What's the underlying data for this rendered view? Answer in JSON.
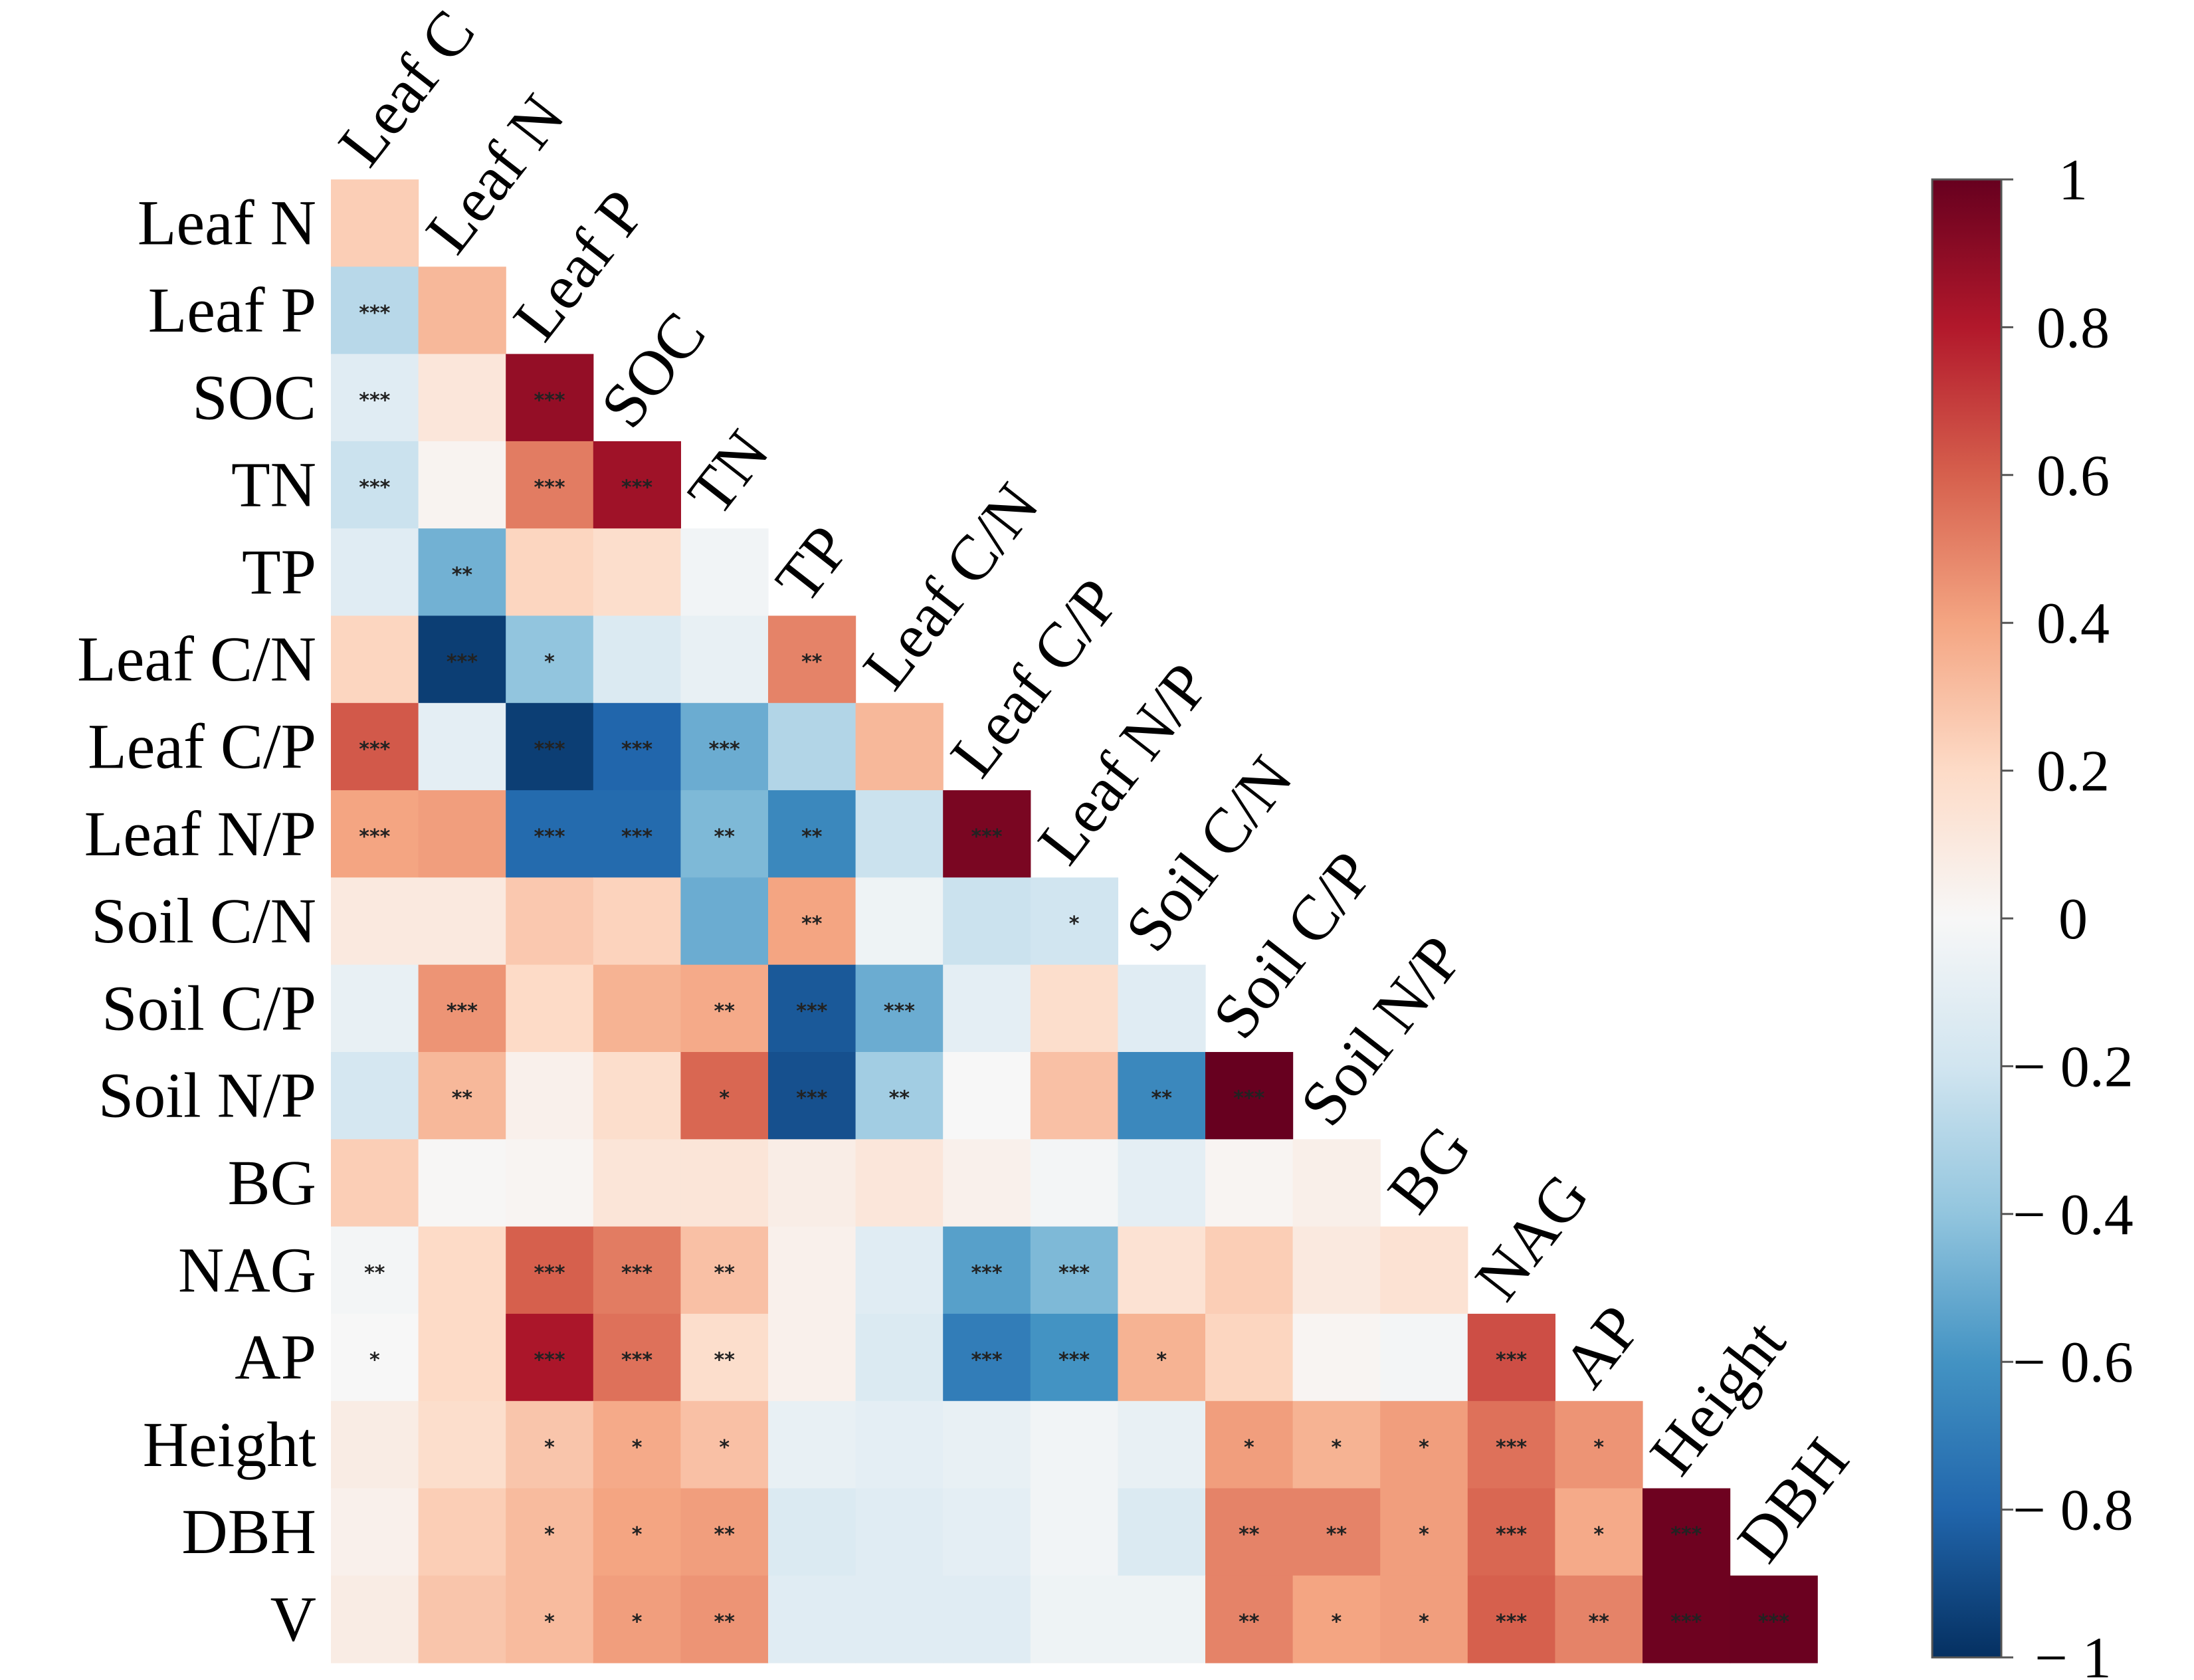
{
  "chart_data": {
    "type": "heatmap",
    "title": "",
    "variables": [
      "Leaf C",
      "Leaf N",
      "Leaf P",
      "SOC",
      "TN",
      "TP",
      "Leaf C/N",
      "Leaf C/P",
      "Leaf N/P",
      "Soil C/N",
      "Soil C/P",
      "Soil N/P",
      "BG",
      "NAG",
      "AP",
      "Height",
      "DBH",
      "V"
    ],
    "row_labels": [
      "Leaf N",
      "Leaf P",
      "SOC",
      "TN",
      "TP",
      "Leaf C/N",
      "Leaf C/P",
      "Leaf N/P",
      "Soil C/N",
      "Soil C/P",
      "Soil N/P",
      "BG",
      "NAG",
      "AP",
      "Height",
      "DBH",
      "V"
    ],
    "col_labels": [
      "Leaf C",
      "Leaf N",
      "Leaf P",
      "SOC",
      "TN",
      "TP",
      "Leaf C/N",
      "Leaf C/P",
      "Leaf N/P",
      "Soil C/N",
      "Soil C/P",
      "Soil N/P",
      "BG",
      "NAG",
      "AP",
      "Height",
      "DBH"
    ],
    "values": [
      [
        0.25
      ],
      [
        -0.28,
        0.33
      ],
      [
        -0.12,
        0.12,
        0.88
      ],
      [
        -0.22,
        0.03,
        0.52,
        0.85
      ],
      [
        -0.12,
        -0.48,
        0.22,
        0.18,
        -0.03
      ],
      [
        0.22,
        -0.95,
        -0.4,
        -0.15,
        -0.08,
        0.5
      ],
      [
        0.62,
        -0.1,
        -0.95,
        -0.8,
        -0.5,
        -0.3,
        0.33
      ],
      [
        0.4,
        0.42,
        -0.78,
        -0.78,
        -0.45,
        -0.65,
        -0.22,
        0.95
      ],
      [
        0.1,
        0.1,
        0.27,
        0.23,
        -0.5,
        0.4,
        -0.05,
        -0.22,
        -0.2
      ],
      [
        -0.08,
        0.45,
        0.2,
        0.35,
        0.38,
        -0.85,
        -0.5,
        -0.1,
        0.18,
        -0.12
      ],
      [
        -0.18,
        0.33,
        0.05,
        0.18,
        0.58,
        -0.88,
        -0.35,
        0.0,
        0.3,
        -0.65,
        1.0
      ],
      [
        0.25,
        0.01,
        0.02,
        0.13,
        0.13,
        0.07,
        0.12,
        0.05,
        -0.02,
        -0.1,
        0.02,
        0.06
      ],
      [
        -0.02,
        0.2,
        0.6,
        0.52,
        0.3,
        0.05,
        -0.12,
        -0.55,
        -0.45,
        0.15,
        0.25,
        0.1,
        0.15
      ],
      [
        0.0,
        0.2,
        0.82,
        0.55,
        0.18,
        0.05,
        -0.15,
        -0.7,
        -0.6,
        0.35,
        0.22,
        0.02,
        -0.02,
        0.65
      ],
      [
        0.08,
        0.18,
        0.28,
        0.38,
        0.3,
        -0.08,
        -0.1,
        -0.08,
        -0.03,
        -0.08,
        0.42,
        0.35,
        0.42,
        0.55,
        0.45
      ],
      [
        0.05,
        0.25,
        0.32,
        0.4,
        0.42,
        -0.15,
        -0.12,
        -0.1,
        -0.03,
        -0.15,
        0.5,
        0.5,
        0.42,
        0.58,
        0.38,
        0.98
      ],
      [
        0.08,
        0.28,
        0.32,
        0.42,
        0.45,
        -0.12,
        -0.12,
        -0.12,
        -0.05,
        -0.05,
        0.5,
        0.4,
        0.42,
        0.6,
        0.5,
        0.98,
        0.99
      ]
    ],
    "significance": [
      [
        ""
      ],
      [
        "***",
        ""
      ],
      [
        "***",
        "",
        "***"
      ],
      [
        "***",
        "",
        "***",
        "***"
      ],
      [
        "",
        "**",
        "",
        "",
        ""
      ],
      [
        "",
        "***",
        "*",
        "",
        "",
        "**"
      ],
      [
        "***",
        "",
        "***",
        "***",
        "***",
        "",
        ""
      ],
      [
        "***",
        "",
        "***",
        "***",
        "**",
        "**",
        "",
        "***"
      ],
      [
        "",
        "",
        "",
        "",
        "",
        "**",
        "",
        "",
        "*"
      ],
      [
        "",
        "***",
        "",
        "",
        "**",
        "***",
        "***",
        "",
        "",
        ""
      ],
      [
        "",
        "**",
        "",
        "",
        "*",
        "***",
        "**",
        "",
        "",
        "**",
        "***"
      ],
      [
        "",
        "",
        "",
        "",
        "",
        "",
        "",
        "",
        "",
        "",
        "",
        ""
      ],
      [
        "**",
        "",
        "***",
        "***",
        "**",
        "",
        "",
        "***",
        "***",
        "",
        "",
        "",
        ""
      ],
      [
        "*",
        "",
        "***",
        "***",
        "**",
        "",
        "",
        "***",
        "***",
        "*",
        "",
        "",
        "",
        "***"
      ],
      [
        "",
        "",
        "*",
        "*",
        "*",
        "",
        "",
        "",
        "",
        "",
        "*",
        "*",
        "*",
        "***",
        "*"
      ],
      [
        "",
        "",
        "*",
        "*",
        "**",
        "",
        "",
        "",
        "",
        "",
        "**",
        "**",
        "*",
        "***",
        "*",
        "***"
      ],
      [
        "",
        "",
        "*",
        "*",
        "**",
        "",
        "",
        "",
        "",
        "",
        "**",
        "*",
        "*",
        "***",
        "**",
        "***",
        "***"
      ]
    ],
    "colorbar": {
      "min": -1,
      "max": 1,
      "ticks": [
        "1",
        "0.8",
        "0.6",
        "0.4",
        "0.2",
        "0",
        "− 0.2",
        "− 0.4",
        "− 0.6",
        "− 0.8",
        "− 1"
      ]
    },
    "colors": {
      "stops": [
        "#053061",
        "#2166ac",
        "#4393c3",
        "#92c5de",
        "#d1e5f0",
        "#f7f7f7",
        "#fddbc7",
        "#f4a582",
        "#d6604d",
        "#b2182b",
        "#67001f"
      ]
    }
  }
}
